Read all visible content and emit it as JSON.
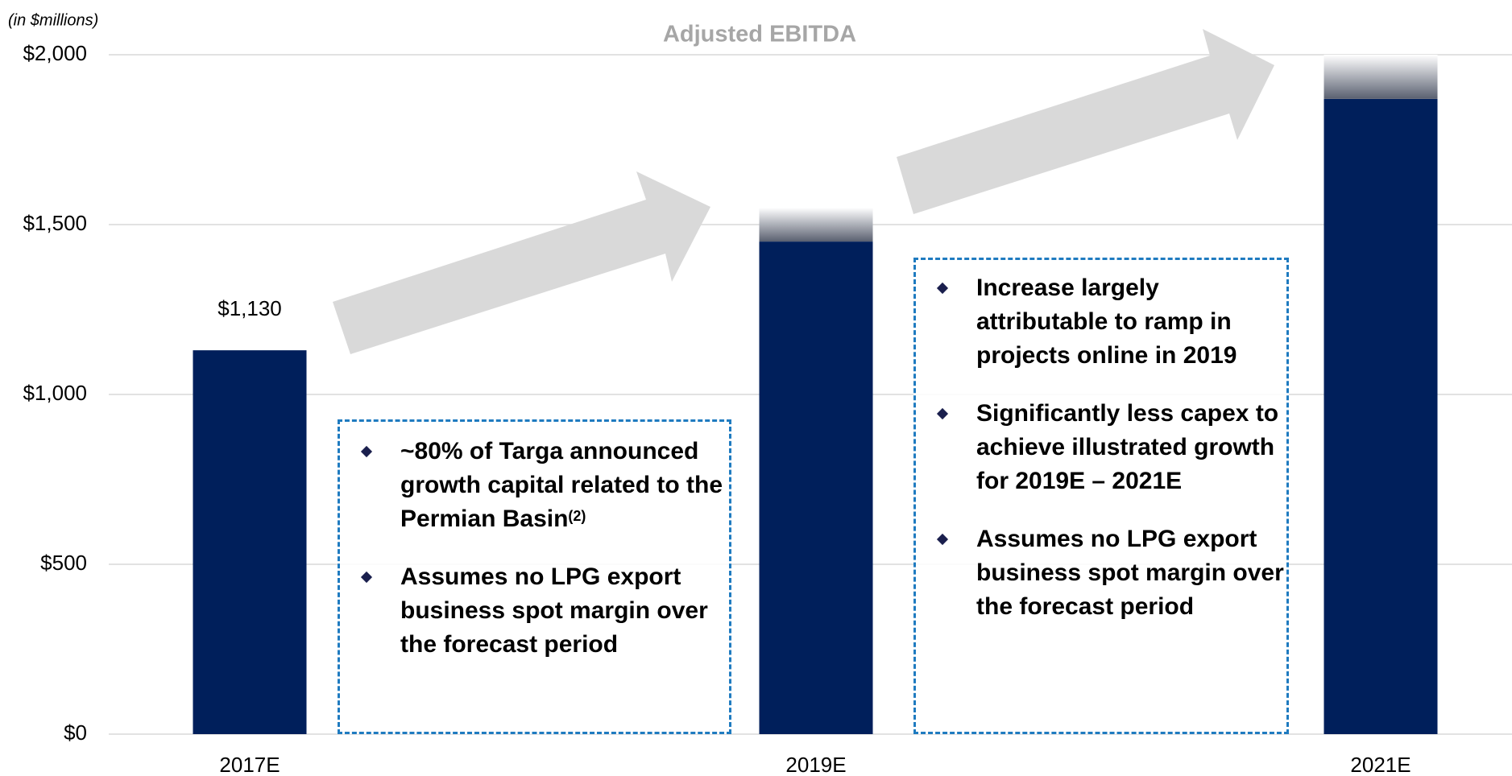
{
  "chart_data": {
    "type": "bar",
    "title": "Adjusted EBITDA",
    "subtitle": "(in $millions)",
    "categories": [
      "2017E",
      "2019E",
      "2021E"
    ],
    "values": [
      1130,
      1450,
      1870
    ],
    "upside": [
      0,
      100,
      130
    ],
    "value_labels": [
      "$1,130",
      null,
      null
    ],
    "color": "#001f5b",
    "upside_color": "#8a8f9a",
    "ylim": [
      0,
      2000
    ],
    "yticks": [
      {
        "value": 0,
        "label": "$0"
      },
      {
        "value": 500,
        "label": "$500"
      },
      {
        "value": 1000,
        "label": "$1,000"
      },
      {
        "value": 1500,
        "label": "$1,500"
      },
      {
        "value": 2000,
        "label": "$2,000"
      }
    ],
    "grid": true,
    "annotations": [
      {
        "bullets": [
          {
            "text": "~80% of Targa announced growth capital related to the Permian Basin",
            "note": "(2)"
          },
          {
            "text": "Assumes no LPG export business spot margin over the forecast period"
          }
        ]
      },
      {
        "bullets": [
          {
            "text": "Increase largely attributable to ramp in projects online in 2019"
          },
          {
            "text": "Significantly less capex to achieve illustrated growth for 2019E – 2021E"
          },
          {
            "text": "Assumes no LPG export business spot margin over the forecast period"
          }
        ]
      }
    ]
  }
}
